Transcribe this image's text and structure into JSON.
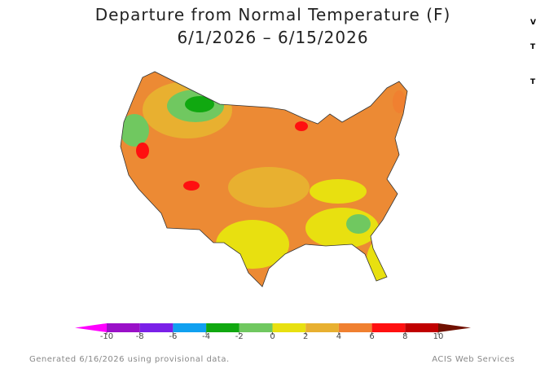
{
  "title": [
    "Departure from Normal Temperature (F)",
    "6/1/2026 – 6/15/2026"
  ],
  "colorbar": {
    "ticks": [
      -10,
      -8,
      -6,
      -4,
      -2,
      0,
      2,
      4,
      6,
      8,
      10
    ],
    "colors": [
      "#ff00ff",
      "#9a10c8",
      "#7a20e8",
      "#10a0f0",
      "#10a810",
      "#70c860",
      "#e8e010",
      "#e8b030",
      "#f08030",
      "#ff1010",
      "#c00000",
      "#701000"
    ]
  },
  "footer": {
    "left": "Generated 6/16/2026 using provisional data.",
    "right": "ACIS Web Services"
  },
  "side": [
    "V",
    "T",
    "T"
  ]
}
